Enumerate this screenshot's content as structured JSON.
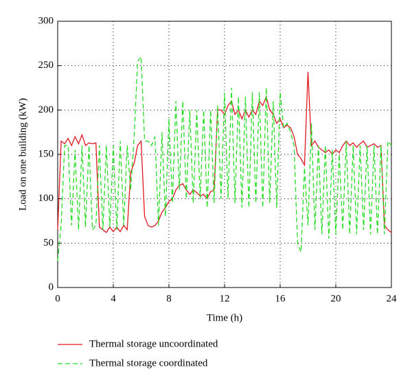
{
  "chart_data": {
    "type": "line",
    "xlabel": "Time (h)",
    "ylabel": "Load on one building (kW)",
    "x": [
      0,
      0.25,
      0.5,
      0.75,
      1,
      1.25,
      1.5,
      1.75,
      2,
      2.25,
      2.5,
      2.75,
      3,
      3.25,
      3.5,
      3.75,
      4,
      4.25,
      4.5,
      4.75,
      5,
      5.25,
      5.5,
      5.75,
      6,
      6.25,
      6.5,
      6.75,
      7,
      7.25,
      7.5,
      7.75,
      8,
      8.25,
      8.5,
      8.75,
      9,
      9.25,
      9.5,
      9.75,
      10,
      10.25,
      10.5,
      10.75,
      11,
      11.25,
      11.5,
      11.75,
      12,
      12.25,
      12.5,
      12.75,
      13,
      13.25,
      13.5,
      13.75,
      14,
      14.25,
      14.5,
      14.75,
      15,
      15.25,
      15.5,
      15.75,
      16,
      16.25,
      16.5,
      16.75,
      17,
      17.25,
      17.5,
      17.75,
      18,
      18.25,
      18.5,
      18.75,
      19,
      19.25,
      19.5,
      19.75,
      20,
      20.25,
      20.5,
      20.75,
      21,
      21.25,
      21.5,
      21.75,
      22,
      22.25,
      22.5,
      22.75,
      23,
      23.25,
      23.5,
      23.75,
      24
    ],
    "series": [
      {
        "name": "Thermal storage uncoordinated",
        "color": "#e0161e",
        "dash": "none",
        "values": [
          65,
          165,
          162,
          168,
          160,
          170,
          162,
          172,
          160,
          163,
          162,
          163,
          68,
          65,
          62,
          68,
          63,
          68,
          63,
          70,
          65,
          130,
          140,
          160,
          165,
          80,
          70,
          68,
          70,
          75,
          85,
          90,
          97,
          100,
          110,
          115,
          117,
          110,
          105,
          110,
          107,
          103,
          105,
          100,
          108,
          110,
          200,
          200,
          195,
          205,
          210,
          195,
          200,
          190,
          200,
          192,
          200,
          195,
          210,
          205,
          215,
          200,
          195,
          185,
          190,
          180,
          183,
          180,
          170,
          150,
          145,
          138,
          243,
          160,
          165,
          158,
          155,
          152,
          155,
          150,
          155,
          152,
          160,
          165,
          160,
          163,
          158,
          162,
          165,
          158,
          160,
          162,
          158,
          160,
          70,
          65,
          62
        ]
      },
      {
        "name": "Thermal storage coordinated",
        "color": "#22dd22",
        "dash": "7,4",
        "values": [
          30,
          70,
          160,
          160,
          70,
          155,
          65,
          160,
          68,
          160,
          65,
          70,
          160,
          65,
          160,
          68,
          160,
          65,
          165,
          70,
          160,
          110,
          170,
          255,
          260,
          165,
          165,
          160,
          170,
          70,
          175,
          80,
          190,
          95,
          210,
          110,
          210,
          100,
          200,
          95,
          200,
          100,
          200,
          90,
          200,
          95,
          205,
          100,
          220,
          100,
          225,
          95,
          215,
          90,
          215,
          90,
          220,
          95,
          220,
          90,
          225,
          95,
          210,
          90,
          220,
          180,
          185,
          175,
          160,
          50,
          40,
          135,
          70,
          185,
          65,
          160,
          60,
          160,
          55,
          155,
          60,
          150,
          65,
          165,
          60,
          160,
          60,
          160,
          65,
          160,
          60,
          160,
          60,
          160,
          60,
          165,
          160
        ]
      }
    ],
    "xlim": [
      0,
      24
    ],
    "xticks": [
      0,
      4,
      8,
      12,
      16,
      20,
      24
    ],
    "ylim": [
      0,
      300
    ],
    "yticks": [
      0,
      50,
      100,
      150,
      200,
      250,
      300
    ],
    "grid": true
  }
}
